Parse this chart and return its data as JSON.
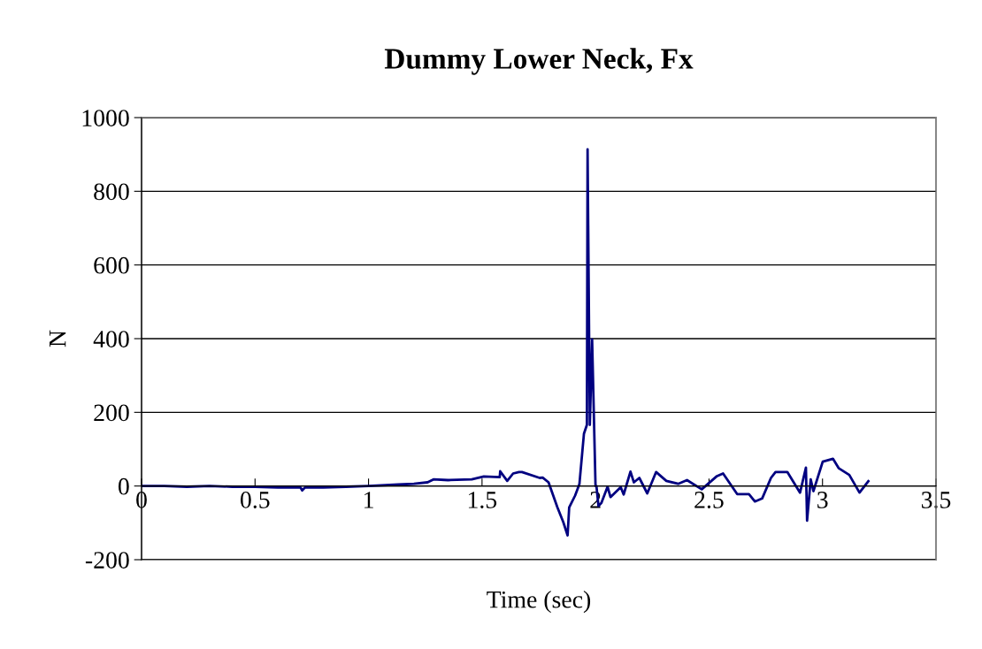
{
  "chart_data": {
    "type": "line",
    "title": "Dummy Lower Neck, Fx",
    "xlabel": "Time (sec)",
    "ylabel": "N",
    "series": [
      {
        "color": "#000080",
        "x": [
          0,
          0.1,
          0.2,
          0.3,
          0.4,
          0.5,
          0.6,
          0.7,
          0.708,
          0.72,
          0.8,
          0.9,
          1.0,
          1.13,
          1.2,
          1.26,
          1.286,
          1.35,
          1.455,
          1.508,
          1.578,
          1.58,
          1.611,
          1.637,
          1.663,
          1.676,
          1.754,
          1.767,
          1.793,
          1.832,
          1.858,
          1.877,
          1.884,
          1.91,
          1.929,
          1.949,
          1.962,
          1.965,
          1.975,
          1.985,
          2.0,
          2.004,
          2.013,
          2.026,
          2.053,
          2.066,
          2.111,
          2.124,
          2.154,
          2.169,
          2.193,
          2.228,
          2.267,
          2.312,
          2.364,
          2.403,
          2.468,
          2.533,
          2.562,
          2.624,
          2.676,
          2.702,
          2.734,
          2.773,
          2.793,
          2.845,
          2.901,
          2.927,
          2.932,
          2.948,
          2.96,
          3.001,
          3.046,
          3.072,
          3.118,
          3.163,
          3.202
        ],
        "values": [
          0,
          0,
          -2,
          0,
          -2,
          -2,
          -4,
          -4,
          -12,
          -4,
          -4,
          -2,
          0,
          4,
          6,
          10,
          18,
          16,
          18,
          26,
          24,
          40,
          14,
          34,
          38,
          38,
          22,
          23,
          10,
          -58,
          -98,
          -134,
          -58,
          -26,
          5,
          142,
          166,
          914,
          166,
          398,
          0,
          0,
          -54,
          -46,
          -2,
          -30,
          -3,
          -23,
          39,
          10,
          22,
          -20,
          38,
          14,
          6,
          16,
          -9,
          26,
          34,
          -22,
          -22,
          -42,
          -34,
          22,
          38,
          38,
          -18,
          50,
          -94,
          18,
          -14,
          66,
          74,
          48,
          30,
          -18,
          13
        ]
      }
    ],
    "xlim": [
      0,
      3.5
    ],
    "xticks": [
      0,
      0.5,
      1,
      1.5,
      2,
      2.5,
      3,
      3.5
    ],
    "ylim": [
      -200,
      1000
    ],
    "yticks": [
      -200,
      0,
      200,
      400,
      600,
      800,
      1000
    ],
    "grid": "y"
  }
}
